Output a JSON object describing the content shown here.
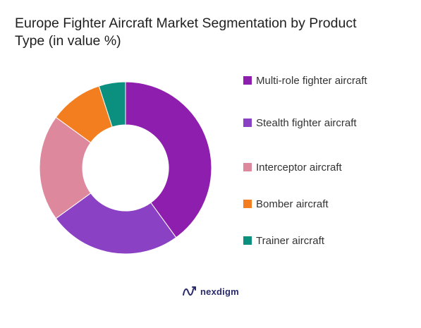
{
  "title": "Europe Fighter Aircraft Market Segmentation by Product Type (in value %)",
  "brand": {
    "name": "nexdigm",
    "icon": "nexdigm-logo-icon"
  },
  "chart_data": {
    "type": "pie",
    "style": "donut",
    "title": "Europe Fighter Aircraft Market Segmentation by Product Type (in value %)",
    "legend_position": "right",
    "categories": [
      "Multi-role fighter aircraft",
      "Stealth fighter aircraft",
      "Interceptor aircraft",
      "Bomber aircraft",
      "Trainer aircraft"
    ],
    "values": [
      40,
      25,
      20,
      10,
      5
    ],
    "colors": [
      "#8E1FAE",
      "#8A41C4",
      "#DE889E",
      "#F27E1F",
      "#0B8F7E"
    ]
  }
}
